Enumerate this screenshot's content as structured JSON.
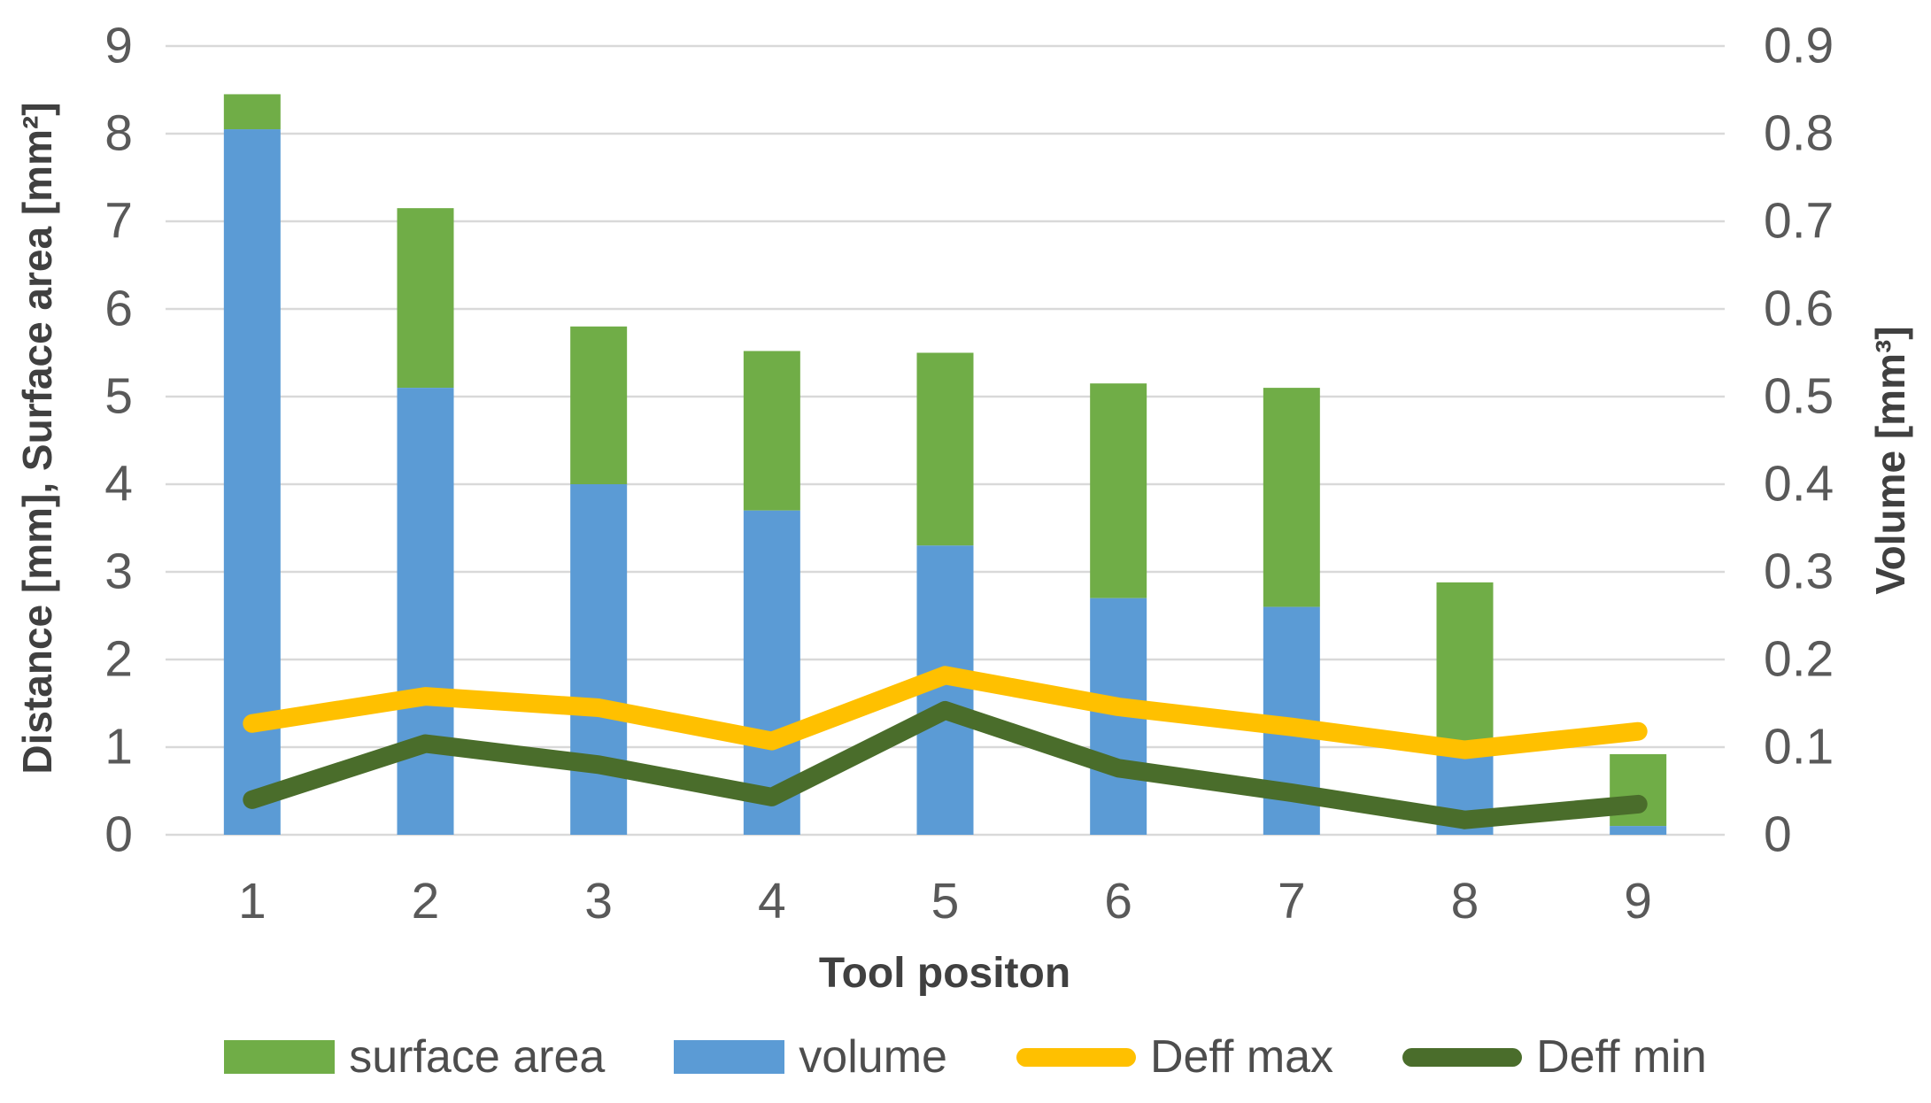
{
  "chart_data": {
    "type": "combo-stacked-bar-line",
    "title": "",
    "categories": [
      "1",
      "2",
      "3",
      "4",
      "5",
      "6",
      "7",
      "8",
      "9"
    ],
    "xlabel": "Tool positon",
    "ylabel_left": "Distance [mm], Surface area [mm²]",
    "ylabel_right": "Volume [mm³]",
    "axis_left": {
      "min": 0,
      "max": 9,
      "step": 1
    },
    "axis_right": {
      "min": 0,
      "max": 0.9,
      "step": 0.1
    },
    "y_left_ticks": [
      "0",
      "1",
      "2",
      "3",
      "4",
      "5",
      "6",
      "7",
      "8",
      "9"
    ],
    "y_right_ticks": [
      "0",
      "0.1",
      "0.2",
      "0.3",
      "0.4",
      "0.5",
      "0.6",
      "0.7",
      "0.8",
      "0.9"
    ],
    "grid": true,
    "legend_position": "bottom",
    "series": [
      {
        "name": "surface area",
        "kind": "bar-stack-top",
        "axis": "left",
        "color": "#70AD47",
        "values": [
          0.4,
          2.05,
          1.8,
          1.82,
          2.2,
          2.45,
          2.5,
          1.98,
          0.82
        ]
      },
      {
        "name": "volume",
        "kind": "bar-stack-base",
        "axis": "right",
        "color": "#5B9BD5",
        "values": [
          0.805,
          0.51,
          0.4,
          0.37,
          0.33,
          0.27,
          0.26,
          0.09,
          0.01
        ]
      },
      {
        "name": "Deff max",
        "kind": "line",
        "axis": "left",
        "color": "#FFC000",
        "values": [
          1.27,
          1.58,
          1.45,
          1.07,
          1.82,
          1.46,
          1.23,
          0.97,
          1.18
        ]
      },
      {
        "name": "Deff min",
        "kind": "line",
        "axis": "left",
        "color": "#4A6D2B",
        "values": [
          0.4,
          1.04,
          0.8,
          0.43,
          1.42,
          0.76,
          0.48,
          0.17,
          0.35
        ]
      }
    ],
    "colors": {
      "gridline": "#D9D9D9",
      "tick_text": "#595959",
      "title_text": "#404040",
      "background": "#FFFFFF"
    }
  }
}
